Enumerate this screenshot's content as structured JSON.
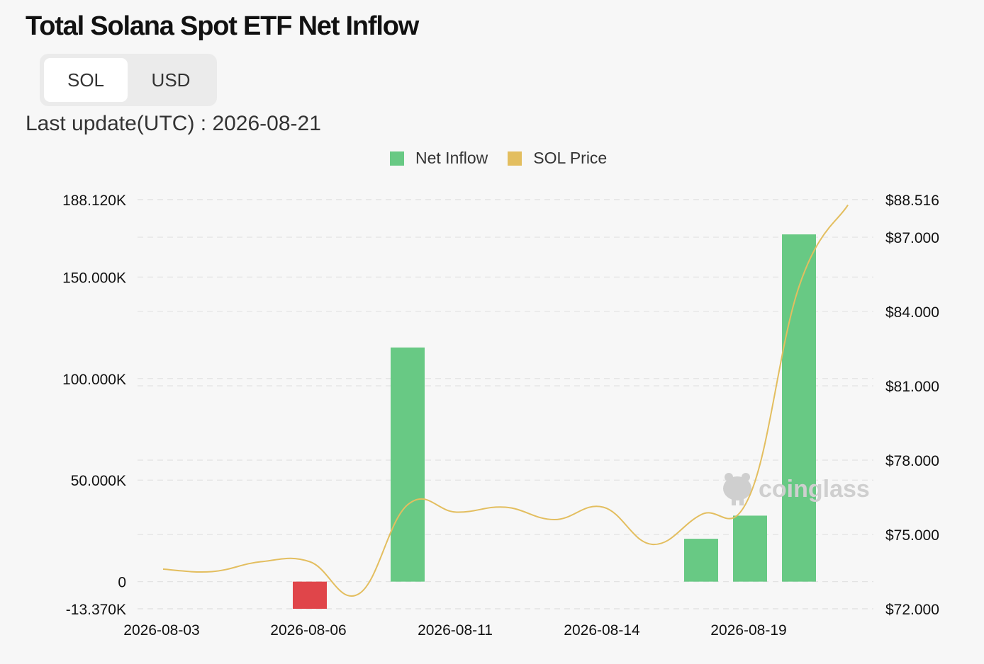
{
  "header": {
    "title": "Total Solana Spot ETF Net Inflow",
    "update_text": "Last update(UTC) : 2026-08-21"
  },
  "toggle": {
    "options": [
      "SOL",
      "USD"
    ],
    "selected": "SOL"
  },
  "watermark": "coinglass",
  "colors": {
    "positive_bar": "#68c984",
    "negative_bar": "#e0454a",
    "price_line": "#e3be5f",
    "grid": "#e3e3e3"
  },
  "chart_data": {
    "type": "bar",
    "legend": [
      {
        "name": "Net Inflow",
        "color": "#68c984"
      },
      {
        "name": "SOL Price",
        "color": "#e3be5f"
      }
    ],
    "legend_position": "top-center",
    "x": [
      "2026-08-03",
      "2026-08-04",
      "2026-08-05",
      "2026-08-06",
      "2026-08-07",
      "2026-08-10",
      "2026-08-11",
      "2026-08-12",
      "2026-08-13",
      "2026-08-14",
      "2026-08-17",
      "2026-08-18",
      "2026-08-19",
      "2026-08-20",
      "2026-08-21"
    ],
    "x_tick_labels": [
      "2026-08-03",
      "2026-08-06",
      "2026-08-11",
      "2026-08-14",
      "2026-08-19"
    ],
    "x_tick_indices": [
      0,
      3,
      6,
      9,
      12
    ],
    "series": [
      {
        "name": "Net Inflow",
        "axis": "left",
        "type": "bar",
        "values": [
          0,
          0,
          0,
          -13.37,
          0,
          115.3,
          0,
          0,
          0,
          0,
          0,
          21.1,
          32.5,
          171.0,
          0
        ]
      },
      {
        "name": "SOL Price",
        "axis": "right",
        "type": "line",
        "values": [
          73.6,
          73.5,
          73.9,
          73.9,
          72.6,
          76.2,
          75.9,
          76.1,
          75.6,
          76.1,
          74.6,
          75.8,
          76.6,
          85.0,
          88.3
        ]
      }
    ],
    "y_left": {
      "ticks": [
        -13.37,
        0,
        50,
        100,
        150,
        188.12
      ],
      "tick_labels": [
        "-13.370K",
        "0",
        "50.000K",
        "100.000K",
        "150.000K",
        "188.120K"
      ],
      "range": [
        -13.37,
        188.12
      ]
    },
    "y_right": {
      "ticks": [
        72,
        75,
        78,
        81,
        84,
        87,
        88.516
      ],
      "tick_labels": [
        "$72.000",
        "$75.000",
        "$78.000",
        "$81.000",
        "$84.000",
        "$87.000",
        "$88.516"
      ],
      "range": [
        72,
        88.516
      ]
    },
    "grid": true
  }
}
